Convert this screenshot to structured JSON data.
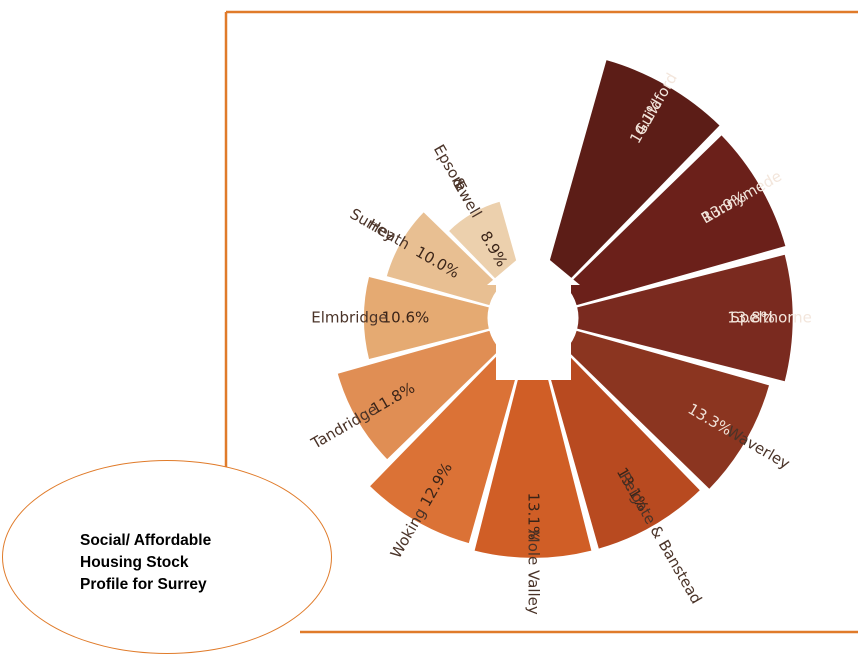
{
  "colors": {
    "frame": "#e07b2a",
    "house": "#ffffff"
  },
  "callout": {
    "text": "Social/ Affordable\nHousing Stock\nProfile for Surrey"
  },
  "chart_data": {
    "type": "polar-area",
    "title": "",
    "unit": "%",
    "series": [
      {
        "label": "Guildford",
        "value": 14.1,
        "display": "14.1%",
        "color": "#5c1d17"
      },
      {
        "label": "Runnymede",
        "value": 13.9,
        "display": "13.9%",
        "color": "#6b201a"
      },
      {
        "label": "Spelthorne",
        "value": 13.8,
        "display": "13.8%",
        "color": "#7a2a1f"
      },
      {
        "label": "Waverley",
        "value": 13.3,
        "display": "13.3%",
        "color": "#8b3520"
      },
      {
        "label": "Reigate & Banstead",
        "value": 13.1,
        "display": "13.1%",
        "color": "#b84a20"
      },
      {
        "label": "Mole Valley",
        "value": 13.1,
        "display": "13.1%",
        "color": "#d05e26"
      },
      {
        "label": "Woking",
        "value": 12.9,
        "display": "12.9%",
        "color": "#db7236"
      },
      {
        "label": "Tandridge",
        "value": 11.8,
        "display": "11.8%",
        "color": "#e08e54"
      },
      {
        "label": "Elmbridge",
        "value": 10.6,
        "display": "10.6%",
        "color": "#e5aa72"
      },
      {
        "label": "Surrey Heath",
        "value": 10.0,
        "display": "10.0%",
        "color": "#e8bf92"
      },
      {
        "label": "Epsom & Ewell",
        "value": 8.9,
        "display": "8.9%",
        "color": "#ecd0ad"
      }
    ]
  }
}
